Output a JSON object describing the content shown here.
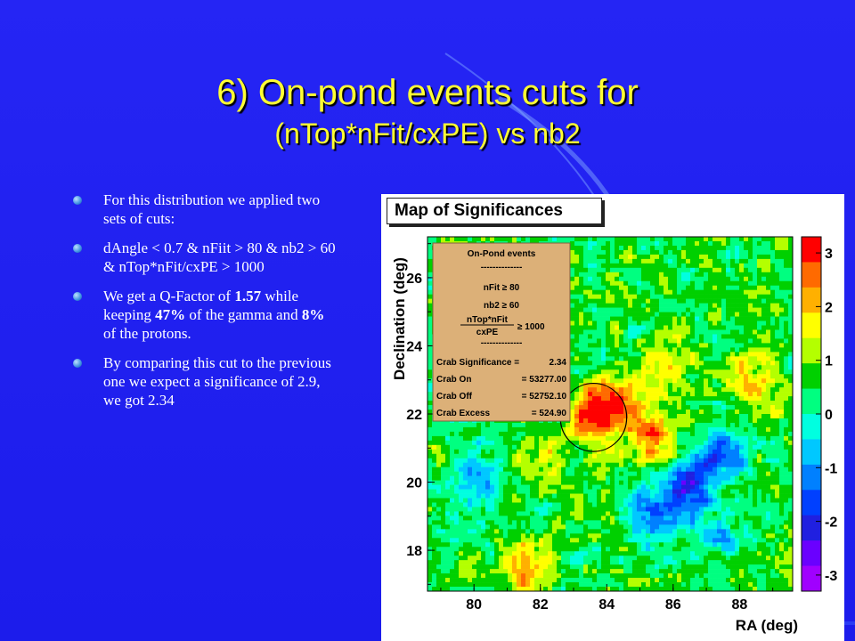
{
  "slide": {
    "title_line1": "6) On-pond events cuts for",
    "title_line2": "(nTop*nFit/cxPE) vs nb2",
    "colors": {
      "background": "#1f1ff0",
      "title": "#ffff33",
      "text": "#ffffff"
    },
    "bullets": [
      {
        "segments": [
          {
            "text": "For this distribution we applied two sets of cuts:",
            "bold": false
          }
        ]
      },
      {
        "segments": [
          {
            "text": "dAngle < 0.7 & nFiit > 80 & nb2 > 60 & nTop*nFit/cxPE > 1000",
            "bold": false
          }
        ]
      },
      {
        "segments": [
          {
            "text": "We get a Q-Factor of ",
            "bold": false
          },
          {
            "text": "1.57",
            "bold": true
          },
          {
            "text": " while keeping ",
            "bold": false
          },
          {
            "text": "47%",
            "bold": true
          },
          {
            "text": " of the gamma and ",
            "bold": false
          },
          {
            "text": "8%",
            "bold": true
          },
          {
            "text": " of the protons.",
            "bold": false
          }
        ]
      },
      {
        "segments": [
          {
            "text": "By comparing this cut to the previous one we expect a significance of 2.9, we got 2.34",
            "bold": false
          }
        ]
      }
    ]
  },
  "chart_data": {
    "type": "heatmap",
    "title": "Map of Significances",
    "xlabel": "RA (deg)",
    "ylabel": "Declination (deg)",
    "xlim": [
      78.6,
      89.6
    ],
    "ylim": [
      16.8,
      27.2
    ],
    "xticks": [
      "80",
      "82",
      "84",
      "86",
      "88"
    ],
    "yticks": [
      "18",
      "20",
      "22",
      "24",
      "26"
    ],
    "colorbar": {
      "range": [
        -3.3,
        3.3
      ],
      "ticks": [
        "3",
        "2",
        "1",
        "0",
        "-1",
        "-2",
        "-3"
      ],
      "colors": [
        "#ff0000",
        "#ff6a00",
        "#ffb000",
        "#ffff00",
        "#b4ff00",
        "#00d000",
        "#00ff80",
        "#00ffe0",
        "#00c8ff",
        "#0080ff",
        "#0040ff",
        "#2020e0",
        "#6a00ff",
        "#a000ff"
      ]
    },
    "source_circle": {
      "center": [
        83.6,
        21.9
      ],
      "radius_deg": 1.0
    },
    "hotspots": [
      {
        "ra": 83.6,
        "dec": 22.0,
        "value": 2.9
      },
      {
        "ra": 84.4,
        "dec": 22.5,
        "value": 1.6
      },
      {
        "ra": 85.3,
        "dec": 21.3,
        "value": 1.9
      },
      {
        "ra": 81.6,
        "dec": 17.5,
        "value": 2.0
      },
      {
        "ra": 85.9,
        "dec": 23.3,
        "value": 1.2
      },
      {
        "ra": 88.4,
        "dec": 23.0,
        "value": 1.5
      },
      {
        "ra": 86.4,
        "dec": 19.8,
        "value": -2.6
      },
      {
        "ra": 87.4,
        "dec": 20.8,
        "value": -2.2
      },
      {
        "ra": 85.4,
        "dec": 19.0,
        "value": -1.8
      },
      {
        "ra": 80.0,
        "dec": 20.0,
        "value": -1.4
      },
      {
        "ra": 79.4,
        "dec": 22.4,
        "value": -0.8
      },
      {
        "ra": 87.6,
        "dec": 18.4,
        "value": -1.2
      },
      {
        "ra": 82.2,
        "dec": 20.6,
        "value": 0.8
      }
    ],
    "stats_box": {
      "title": "On-Pond events",
      "separator": "--------------",
      "cuts": [
        "nFit ≥ 80",
        "nb2 ≥ 60"
      ],
      "frac_num": "nTop*nFit",
      "frac_den": "cxPE",
      "frac_rhs": "≥ 1000",
      "rows": [
        {
          "label": "Crab Significance =",
          "value": "2.34"
        },
        {
          "label": "Crab On",
          "value": "= 53277.00"
        },
        {
          "label": "Crab Off",
          "value": "= 52752.10"
        },
        {
          "label": "Crab Excess",
          "value": "= 524.90"
        }
      ]
    }
  }
}
